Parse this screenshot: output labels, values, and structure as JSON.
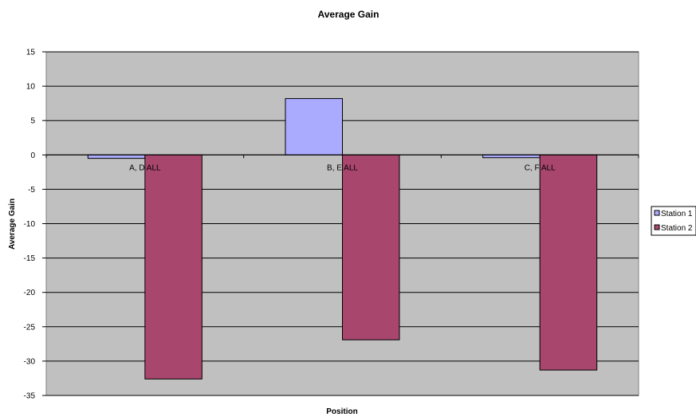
{
  "chart_data": {
    "type": "bar",
    "title": "Average Gain",
    "xlabel": "Position",
    "ylabel": "Average Gain",
    "categories": [
      "A, D ALL",
      "B, E ALL",
      "C, F ALL"
    ],
    "series": [
      {
        "name": "Station 1",
        "color": "#aaaaff",
        "values": [
          -0.5,
          8.2,
          -0.4
        ]
      },
      {
        "name": "Station 2",
        "color": "#a8466e",
        "values": [
          -32.6,
          -26.9,
          -31.3
        ]
      }
    ],
    "ylim": [
      -35,
      15
    ],
    "yticks": [
      15,
      10,
      5,
      0,
      -5,
      -10,
      -15,
      -20,
      -25,
      -30,
      -35
    ],
    "grid": true,
    "plot_background": "#c0c0c0",
    "legend_position": "right"
  }
}
